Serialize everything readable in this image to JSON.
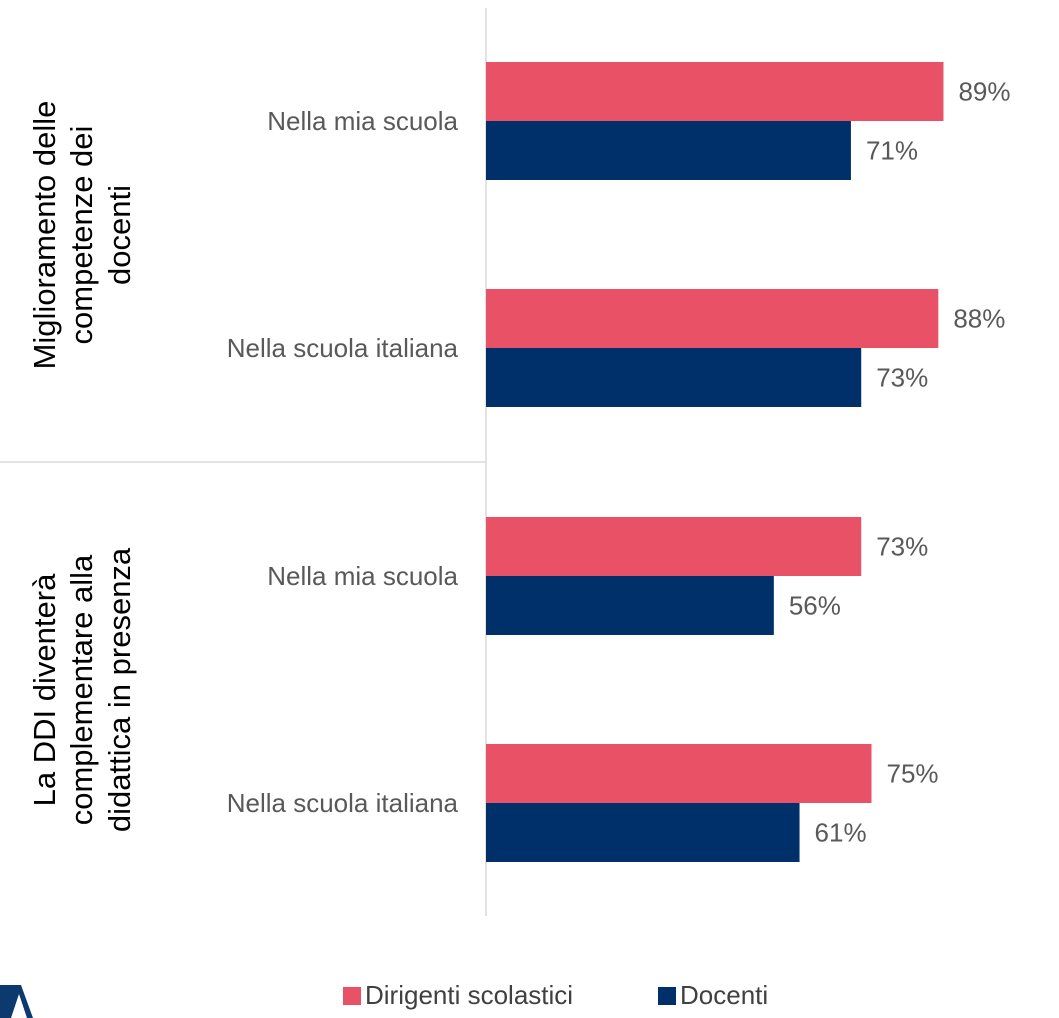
{
  "chart_data": {
    "type": "bar",
    "orientation": "horizontal",
    "groups": [
      {
        "label_lines": [
          "Miglioramento delle",
          "competenze dei",
          "docenti"
        ],
        "categories": [
          "Nella mia scuola",
          "Nella scuola italiana"
        ]
      },
      {
        "label_lines": [
          "La DDI diventerà",
          "complementare alla",
          "didattica in presenza"
        ],
        "categories": [
          "Nella mia scuola",
          "Nella scuola italiana"
        ]
      }
    ],
    "categories": [
      "Nella mia scuola",
      "Nella scuola italiana",
      "Nella mia scuola",
      "Nella scuola italiana"
    ],
    "series": [
      {
        "name": "Dirigenti scolastici",
        "color": "#E85166",
        "values": [
          89,
          88,
          73,
          75
        ],
        "labels": [
          "89%",
          "88%",
          "73%",
          "75%"
        ]
      },
      {
        "name": "Docenti",
        "color": "#003069",
        "values": [
          71,
          73,
          56,
          61
        ],
        "labels": [
          "71%",
          "73%",
          "56%",
          "61%"
        ]
      }
    ],
    "xlim": [
      0,
      100
    ],
    "unit": "%",
    "grid": false,
    "legend_position": "bottom",
    "title": "",
    "xlabel": "",
    "ylabel": ""
  },
  "colors": {
    "axis_line": "#D9D9D9",
    "logo": "#0D3A6E"
  },
  "logo_icon": "lambda-logo-icon"
}
